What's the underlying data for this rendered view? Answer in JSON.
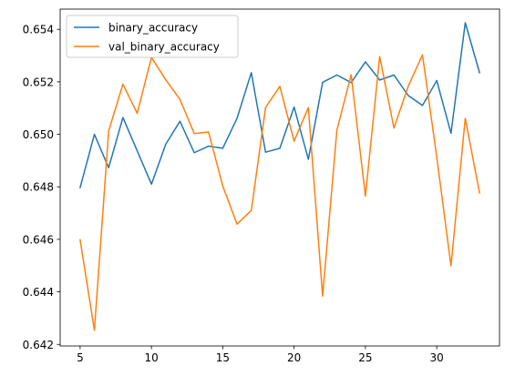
{
  "chart_data": {
    "type": "line",
    "x": [
      5,
      6,
      7,
      8,
      9,
      10,
      11,
      12,
      13,
      14,
      15,
      16,
      17,
      18,
      19,
      20,
      21,
      22,
      23,
      24,
      25,
      26,
      27,
      28,
      29,
      30,
      31,
      32,
      33
    ],
    "series": [
      {
        "name": "binary_accuracy",
        "color": "#1f77b4",
        "values": [
          0.64797,
          0.65,
          0.64873,
          0.65064,
          0.64937,
          0.6481,
          0.64962,
          0.6505,
          0.6493,
          0.64955,
          0.64947,
          0.65061,
          0.65235,
          0.64932,
          0.64947,
          0.65104,
          0.64905,
          0.65198,
          0.65226,
          0.65197,
          0.65276,
          0.65207,
          0.65226,
          0.65148,
          0.6511,
          0.65205,
          0.65004,
          0.65425,
          0.65235
        ]
      },
      {
        "name": "val_binary_accuracy",
        "color": "#ff7f0e",
        "values": [
          0.64598,
          0.64254,
          0.65013,
          0.65191,
          0.6508,
          0.65293,
          0.65208,
          0.65133,
          0.65003,
          0.65009,
          0.64803,
          0.64658,
          0.6471,
          0.65102,
          0.65183,
          0.64974,
          0.65102,
          0.64384,
          0.65016,
          0.65227,
          0.64765,
          0.65296,
          0.65024,
          0.65183,
          0.65303,
          0.64914,
          0.64499,
          0.65061,
          0.64777
        ]
      }
    ],
    "xticks": [
      5,
      10,
      15,
      20,
      25,
      30
    ],
    "yticks": [
      0.642,
      0.644,
      0.646,
      0.648,
      0.65,
      0.652,
      0.654
    ],
    "xlim": [
      3.6,
      34.4
    ],
    "ylim": [
      0.64194,
      0.65477
    ],
    "title": "",
    "xlabel": "",
    "ylabel": "",
    "grid": false,
    "legend_position": "upper-left"
  }
}
